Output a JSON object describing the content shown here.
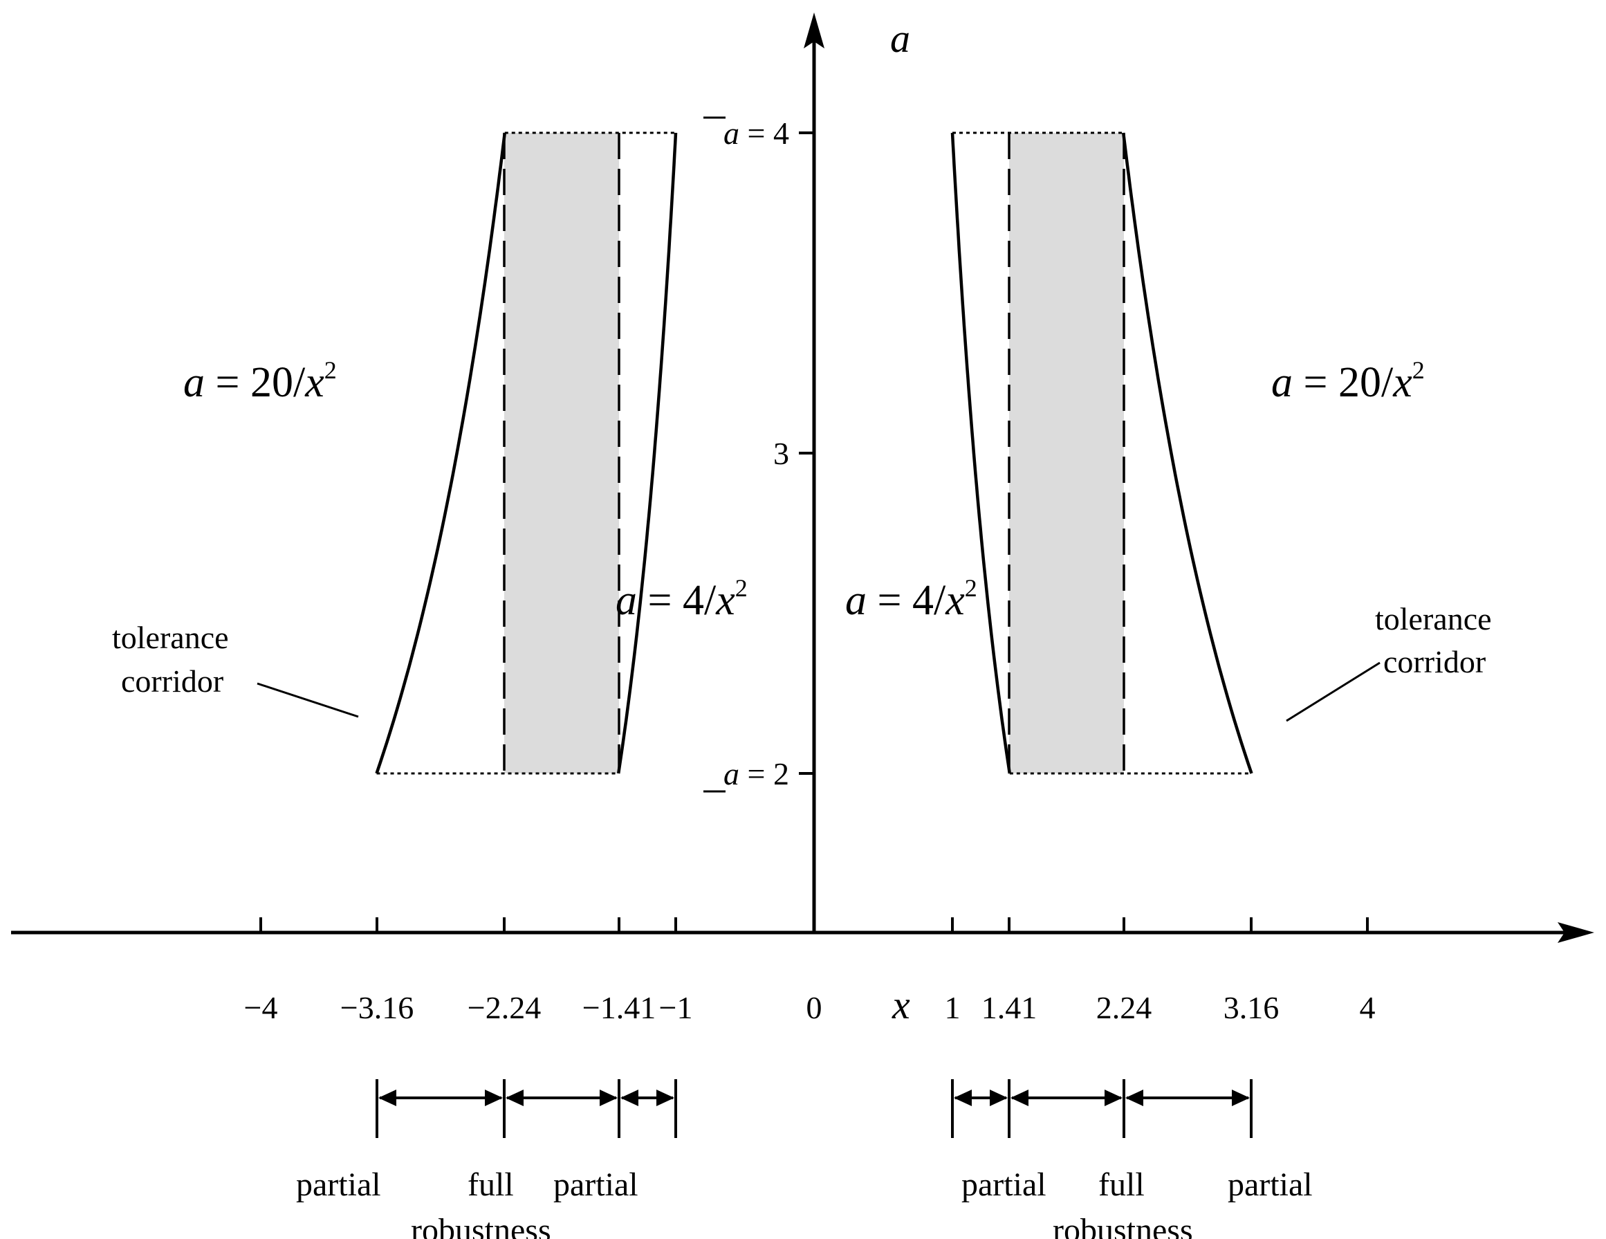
{
  "axes": {
    "x_title": "x",
    "y_title": "a",
    "x_ticks": [
      {
        "value": -4,
        "label": "−4"
      },
      {
        "value": -3.16,
        "label": "−3.16"
      },
      {
        "value": -2.24,
        "label": "−2.24"
      },
      {
        "value": -1.41,
        "label": "−1.41"
      },
      {
        "value": -1,
        "label": "−1"
      },
      {
        "value": 0,
        "label": "0"
      },
      {
        "value": 1,
        "label": "1"
      },
      {
        "value": 1.41,
        "label": "1.41"
      },
      {
        "value": 2.24,
        "label": "2.24"
      },
      {
        "value": 3.16,
        "label": "3.16"
      },
      {
        "value": 4,
        "label": "4"
      }
    ],
    "y_ticks": [
      {
        "value": 4,
        "label": "= 4",
        "symbol": "a",
        "mark": "overline"
      },
      {
        "value": 3,
        "label": "3"
      },
      {
        "value": 2,
        "label": "= 2",
        "symbol": "a",
        "mark": "underline"
      }
    ]
  },
  "curves": {
    "outer": {
      "k": 20,
      "formula_var": "a",
      "formula_eq": " = 20/",
      "formula_x": "x",
      "formula_exp": "2"
    },
    "inner": {
      "k": 4,
      "formula_var": "a",
      "formula_eq": " = 4/",
      "formula_x": "x",
      "formula_exp": "2"
    },
    "a_min": 2,
    "a_max": 4
  },
  "full_robustness_band": {
    "x_from": 1.41,
    "x_to": 2.24,
    "fill": "#dcdcdc"
  },
  "annotations": {
    "tolerance_corridor_line1": "tolerance",
    "tolerance_corridor_line2": "corridor"
  },
  "regions": {
    "partial": "partial",
    "full": "full",
    "robustness": "robustness"
  },
  "colors": {
    "ink": "#000000",
    "shade": "#dcdcdc"
  }
}
